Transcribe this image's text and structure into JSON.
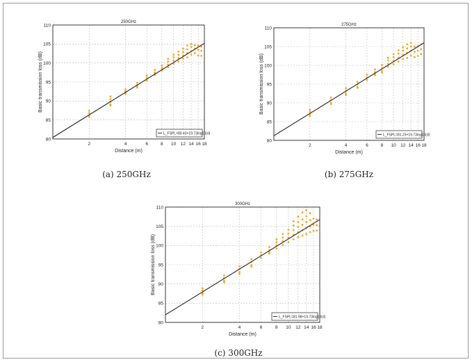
{
  "figure": {
    "captions": [
      "(a) 250GHz",
      "(b) 275GHz",
      "(c) 300GHz"
    ]
  },
  "chart_data": [
    {
      "type": "scatter",
      "title": "250GHz",
      "xlabel": "Distance (m)",
      "ylabel": "Basic transmission loss (dB)",
      "x_scale": "log",
      "xlim": [
        1,
        18
      ],
      "ylim": [
        80,
        110
      ],
      "x_ticks": [
        "2",
        "4",
        "6",
        "8",
        "10",
        "12",
        "14",
        "16",
        "18"
      ],
      "y_ticks": [
        "80",
        "85",
        "90",
        "95",
        "100",
        "105",
        "110"
      ],
      "grid": true,
      "legend_position": "bottom-right",
      "legend_text": "L_FSPL=80.40+19.73log10(d)",
      "fit": {
        "intercept": 80.4,
        "slope": 19.73
      },
      "points": [
        [
          2,
          86.2
        ],
        [
          2,
          86.8
        ],
        [
          2,
          87.4
        ],
        [
          2,
          85.8
        ],
        [
          3,
          89.1
        ],
        [
          3,
          89.8
        ],
        [
          3,
          90.5
        ],
        [
          3,
          91.2
        ],
        [
          3,
          88.8
        ],
        [
          4,
          91.9
        ],
        [
          4,
          92.6
        ],
        [
          4,
          93.1
        ],
        [
          4,
          92.2
        ],
        [
          5,
          93.5
        ],
        [
          5,
          94.2
        ],
        [
          5,
          94.8
        ],
        [
          5,
          93.9
        ],
        [
          6,
          95.4
        ],
        [
          6,
          96.1
        ],
        [
          6,
          96.7
        ],
        [
          7,
          96.8
        ],
        [
          7,
          97.5
        ],
        [
          7,
          98.2
        ],
        [
          7,
          97.1
        ],
        [
          8,
          98.0
        ],
        [
          8,
          98.7
        ],
        [
          8,
          99.3
        ],
        [
          8,
          98.4
        ],
        [
          9,
          98.9
        ],
        [
          9,
          99.6
        ],
        [
          9,
          100.4
        ],
        [
          9,
          101.1
        ],
        [
          10,
          99.8
        ],
        [
          10,
          100.6
        ],
        [
          10,
          101.5
        ],
        [
          10,
          102.2
        ],
        [
          11,
          100.4
        ],
        [
          11,
          101.3
        ],
        [
          11,
          102.1
        ],
        [
          11,
          103.0
        ],
        [
          12,
          101.2
        ],
        [
          12,
          102.0
        ],
        [
          12,
          102.9
        ],
        [
          12,
          103.8
        ],
        [
          13,
          101.5
        ],
        [
          13,
          102.6
        ],
        [
          13,
          103.6
        ],
        [
          13,
          104.6
        ],
        [
          14,
          102.2
        ],
        [
          14,
          103.1
        ],
        [
          14,
          104.2
        ],
        [
          14,
          105.0
        ],
        [
          15,
          102.6
        ],
        [
          15,
          103.8
        ],
        [
          15,
          104.7
        ],
        [
          16,
          102.0
        ],
        [
          16,
          103.5
        ],
        [
          16,
          104.6
        ],
        [
          17,
          101.9
        ],
        [
          17,
          103.2
        ],
        [
          17,
          104.3
        ]
      ]
    },
    {
      "type": "scatter",
      "title": "275GHz",
      "xlabel": "Distance (m)",
      "ylabel": "Basic transmission loss (dB)",
      "x_scale": "log",
      "xlim": [
        1,
        18
      ],
      "ylim": [
        80,
        110
      ],
      "x_ticks": [
        "2",
        "4",
        "6",
        "8",
        "10",
        "12",
        "14",
        "16",
        "18"
      ],
      "y_ticks": [
        "80",
        "85",
        "90",
        "95",
        "100",
        "105",
        "110"
      ],
      "grid": true,
      "legend_position": "bottom-right",
      "legend_text": "L_FSPL=81.23+19.73log10(d)",
      "fit": {
        "intercept": 81.23,
        "slope": 19.73
      },
      "points": [
        [
          2,
          86.9
        ],
        [
          2,
          87.6
        ],
        [
          2,
          88.2
        ],
        [
          2,
          86.5
        ],
        [
          3,
          90.0
        ],
        [
          3,
          90.7
        ],
        [
          3,
          91.4
        ],
        [
          3,
          89.7
        ],
        [
          4,
          92.5
        ],
        [
          4,
          93.2
        ],
        [
          4,
          93.9
        ],
        [
          4,
          92.1
        ],
        [
          5,
          94.3
        ],
        [
          5,
          95.0
        ],
        [
          5,
          95.6
        ],
        [
          5,
          94.0
        ],
        [
          6,
          96.1
        ],
        [
          6,
          96.8
        ],
        [
          6,
          97.5
        ],
        [
          7,
          97.4
        ],
        [
          7,
          98.2
        ],
        [
          7,
          98.9
        ],
        [
          7,
          97.8
        ],
        [
          8,
          98.5
        ],
        [
          8,
          99.3
        ],
        [
          8,
          100.1
        ],
        [
          8,
          98.0
        ],
        [
          9,
          99.6
        ],
        [
          9,
          100.4
        ],
        [
          9,
          101.3
        ],
        [
          9,
          102.0
        ],
        [
          10,
          100.3
        ],
        [
          10,
          101.2
        ],
        [
          10,
          102.2
        ],
        [
          10,
          103.0
        ],
        [
          11,
          101.0
        ],
        [
          11,
          102.0
        ],
        [
          11,
          103.1
        ],
        [
          11,
          104.0
        ],
        [
          12,
          101.7
        ],
        [
          12,
          102.8
        ],
        [
          12,
          103.9
        ],
        [
          12,
          104.8
        ],
        [
          13,
          102.0
        ],
        [
          13,
          103.3
        ],
        [
          13,
          104.5
        ],
        [
          13,
          105.6
        ],
        [
          14,
          102.6
        ],
        [
          14,
          103.9
        ],
        [
          14,
          105.0
        ],
        [
          14,
          106.0
        ],
        [
          15,
          102.2
        ],
        [
          15,
          103.6
        ],
        [
          15,
          104.9
        ],
        [
          16,
          102.5
        ],
        [
          16,
          103.9
        ],
        [
          16,
          105.2
        ],
        [
          17,
          103.0
        ],
        [
          17,
          104.3
        ],
        [
          17,
          105.6
        ]
      ]
    },
    {
      "type": "scatter",
      "title": "300GHz",
      "xlabel": "Distance (m)",
      "ylabel": "Basic transmission loss (dB)",
      "x_scale": "log",
      "xlim": [
        1,
        18
      ],
      "ylim": [
        80,
        110
      ],
      "x_ticks": [
        "2",
        "4",
        "6",
        "8",
        "10",
        "12",
        "14",
        "16",
        "18"
      ],
      "y_ticks": [
        "80",
        "85",
        "90",
        "95",
        "100",
        "105",
        "110"
      ],
      "grid": true,
      "legend_position": "bottom-right",
      "legend_text": "L_FSPL=81.98+19.73log10(d)",
      "fit": {
        "intercept": 81.98,
        "slope": 19.73
      },
      "points": [
        [
          2,
          87.6
        ],
        [
          2,
          88.3
        ],
        [
          2,
          88.9
        ],
        [
          2,
          87.2
        ],
        [
          3,
          90.8
        ],
        [
          3,
          91.5
        ],
        [
          3,
          92.2
        ],
        [
          3,
          90.4
        ],
        [
          4,
          93.1
        ],
        [
          4,
          93.9
        ],
        [
          4,
          94.6
        ],
        [
          4,
          92.6
        ],
        [
          5,
          94.9
        ],
        [
          5,
          95.7
        ],
        [
          5,
          96.4
        ],
        [
          5,
          94.5
        ],
        [
          6,
          96.8
        ],
        [
          6,
          97.5
        ],
        [
          6,
          98.2
        ],
        [
          7,
          97.9
        ],
        [
          7,
          98.8
        ],
        [
          7,
          99.6
        ],
        [
          7,
          98.3
        ],
        [
          8,
          99.2
        ],
        [
          8,
          100.0
        ],
        [
          8,
          100.9
        ],
        [
          8,
          101.6
        ],
        [
          9,
          100.2
        ],
        [
          9,
          101.1
        ],
        [
          9,
          102.1
        ],
        [
          9,
          103.0
        ],
        [
          10,
          100.9
        ],
        [
          10,
          102.0
        ],
        [
          10,
          103.1
        ],
        [
          10,
          104.1
        ],
        [
          11,
          101.6
        ],
        [
          11,
          102.8
        ],
        [
          11,
          104.0
        ],
        [
          11,
          105.2
        ],
        [
          11,
          106.3
        ],
        [
          12,
          102.2
        ],
        [
          12,
          103.5
        ],
        [
          12,
          104.8
        ],
        [
          12,
          106.1
        ],
        [
          12,
          107.5
        ],
        [
          13,
          102.6
        ],
        [
          13,
          104.0
        ],
        [
          13,
          105.4
        ],
        [
          13,
          106.8
        ],
        [
          13,
          108.6
        ],
        [
          14,
          103.0
        ],
        [
          14,
          104.6
        ],
        [
          14,
          106.1
        ],
        [
          14,
          107.6
        ],
        [
          14,
          109.2
        ],
        [
          15,
          103.5
        ],
        [
          15,
          105.0
        ],
        [
          15,
          106.6
        ],
        [
          15,
          108.4
        ],
        [
          16,
          103.8
        ],
        [
          16,
          105.4
        ],
        [
          16,
          107.0
        ],
        [
          17,
          103.9
        ],
        [
          17,
          105.3
        ],
        [
          17,
          106.8
        ]
      ]
    }
  ]
}
